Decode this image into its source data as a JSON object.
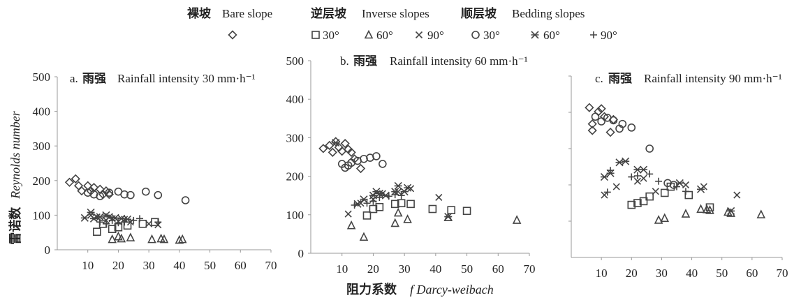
{
  "legend": {
    "groups": [
      {
        "cn": "裸坡",
        "en": "Bare slope"
      },
      {
        "cn": "逆层坡",
        "en": "Inverse slopes"
      },
      {
        "cn": "顺层坡",
        "en": "Bedding slopes"
      }
    ],
    "entries": [
      {
        "marker": "diamond",
        "label": ""
      },
      {
        "marker": "square",
        "label": "30°"
      },
      {
        "marker": "triangle",
        "label": "60°"
      },
      {
        "marker": "cross",
        "label": "90°"
      },
      {
        "marker": "circle",
        "label": "30°"
      },
      {
        "marker": "asterisk",
        "label": "60°"
      },
      {
        "marker": "plus",
        "label": "90°"
      }
    ]
  },
  "ylabel": {
    "cn": "雷诺数",
    "en": "Reynolds number"
  },
  "xlabel": {
    "cn": "阻力系数",
    "en": "f Darcy-weibach"
  },
  "chart_data": [
    {
      "type": "scatter",
      "panel": "a",
      "title_prefix": "a.",
      "title_cn": "雨强",
      "title_en": "Rainfall intensity 30 mm·h⁻¹",
      "xlim": [
        0,
        70
      ],
      "ylim": [
        0,
        500
      ],
      "xticks": [
        10,
        20,
        30,
        40,
        50,
        60,
        70
      ],
      "yticks": [
        0,
        100,
        200,
        300,
        400,
        500
      ],
      "series": [
        {
          "marker": "diamond",
          "points": [
            [
              4,
              195
            ],
            [
              6,
              205
            ],
            [
              7,
              185
            ],
            [
              8,
              170
            ],
            [
              10,
              185
            ],
            [
              11,
              170
            ],
            [
              12,
              180
            ],
            [
              14,
              175
            ],
            [
              15,
              160
            ],
            [
              16,
              170
            ],
            [
              17,
              160
            ]
          ]
        },
        {
          "marker": "circle",
          "points": [
            [
              10,
              165
            ],
            [
              12,
              160
            ],
            [
              14,
              155
            ],
            [
              17,
              165
            ],
            [
              20,
              168
            ],
            [
              22,
              160
            ],
            [
              24,
              158
            ],
            [
              29,
              168
            ],
            [
              33,
              158
            ],
            [
              42,
              143
            ]
          ]
        },
        {
          "marker": "square",
          "points": [
            [
              13,
              52
            ],
            [
              15,
              75
            ],
            [
              18,
              60
            ],
            [
              20,
              65
            ],
            [
              23,
              70
            ],
            [
              28,
              75
            ],
            [
              32,
              80
            ]
          ]
        },
        {
          "marker": "triangle",
          "points": [
            [
              18,
              30
            ],
            [
              20,
              38
            ],
            [
              21,
              32
            ],
            [
              24,
              35
            ],
            [
              31,
              30
            ],
            [
              34,
              32
            ],
            [
              35,
              30
            ],
            [
              40,
              28
            ],
            [
              41,
              30
            ]
          ]
        },
        {
          "marker": "cross",
          "points": [
            [
              11,
              100
            ],
            [
              13,
              95
            ],
            [
              16,
              85
            ],
            [
              18,
              90
            ],
            [
              20,
              82
            ],
            [
              22,
              88
            ],
            [
              24,
              80
            ],
            [
              30,
              75
            ],
            [
              33,
              72
            ]
          ]
        },
        {
          "marker": "asterisk",
          "points": [
            [
              9,
              92
            ],
            [
              11,
              108
            ],
            [
              12,
              90
            ],
            [
              14,
              95
            ],
            [
              16,
              100
            ],
            [
              17,
              95
            ],
            [
              19,
              92
            ],
            [
              21,
              90
            ],
            [
              23,
              88
            ]
          ]
        },
        {
          "marker": "plus",
          "points": [
            [
              14,
              80
            ],
            [
              16,
              75
            ],
            [
              18,
              85
            ],
            [
              20,
              78
            ],
            [
              22,
              80
            ],
            [
              25,
              85
            ],
            [
              27,
              90
            ],
            [
              33,
              80
            ]
          ]
        }
      ]
    },
    {
      "type": "scatter",
      "panel": "b",
      "title_prefix": "b.",
      "title_cn": "雨强",
      "title_en": "Rainfall intensity 60 mm·h⁻¹",
      "xlim": [
        0,
        70
      ],
      "ylim": [
        0,
        500
      ],
      "xticks": [
        10,
        20,
        30,
        40,
        50,
        60,
        70
      ],
      "yticks": [
        0,
        100,
        200,
        300,
        400,
        500
      ],
      "series": [
        {
          "marker": "diamond",
          "points": [
            [
              4,
              272
            ],
            [
              6,
              280
            ],
            [
              7,
              262
            ],
            [
              8,
              290
            ],
            [
              9,
              275
            ],
            [
              10,
              265
            ],
            [
              11,
              285
            ],
            [
              12,
              270
            ],
            [
              13,
              262
            ],
            [
              14,
              245
            ],
            [
              16,
              220
            ]
          ]
        },
        {
          "marker": "circle",
          "points": [
            [
              10,
              232
            ],
            [
              11,
              222
            ],
            [
              12,
              228
            ],
            [
              13,
              235
            ],
            [
              15,
              240
            ],
            [
              17,
              245
            ],
            [
              19,
              248
            ],
            [
              21,
              252
            ],
            [
              23,
              232
            ]
          ]
        },
        {
          "marker": "square",
          "points": [
            [
              18,
              98
            ],
            [
              20,
              115
            ],
            [
              22,
              120
            ],
            [
              27,
              128
            ],
            [
              29,
              130
            ],
            [
              32,
              128
            ],
            [
              39,
              115
            ],
            [
              45,
              112
            ],
            [
              50,
              110
            ]
          ]
        },
        {
          "marker": "triangle",
          "points": [
            [
              13,
              72
            ],
            [
              17,
              42
            ],
            [
              27,
              78
            ],
            [
              28,
              105
            ],
            [
              31,
              88
            ],
            [
              44,
              93
            ],
            [
              66,
              86
            ]
          ]
        },
        {
          "marker": "cross",
          "points": [
            [
              12,
              102
            ],
            [
              16,
              130
            ],
            [
              20,
              140
            ],
            [
              23,
              155
            ],
            [
              28,
              160
            ],
            [
              32,
              168
            ],
            [
              41,
              145
            ]
          ]
        },
        {
          "marker": "asterisk",
          "points": [
            [
              8,
              287
            ],
            [
              15,
              128
            ],
            [
              17,
              140
            ],
            [
              20,
              150
            ],
            [
              21,
              160
            ],
            [
              22,
              155
            ],
            [
              24,
              150
            ],
            [
              27,
              160
            ],
            [
              28,
              175
            ],
            [
              30,
              160
            ],
            [
              31,
              170
            ],
            [
              44,
              95
            ]
          ]
        },
        {
          "marker": "plus",
          "points": [
            [
              14,
              125
            ],
            [
              18,
              130
            ],
            [
              20,
              135
            ],
            [
              22,
              145
            ],
            [
              25,
              148
            ],
            [
              27,
              152
            ],
            [
              29,
              150
            ]
          ]
        }
      ]
    },
    {
      "type": "scatter",
      "panel": "c",
      "title_prefix": "c.",
      "title_cn": "雨强",
      "title_en": "Rainfall intensity 90 mm·h⁻¹",
      "xlim": [
        0,
        70
      ],
      "ylim": [
        0,
        500
      ],
      "xticks": [
        10,
        20,
        30,
        40,
        50,
        60,
        70
      ],
      "yticks": [],
      "series": [
        {
          "marker": "diamond",
          "points": [
            [
              6,
              413
            ],
            [
              7,
              368
            ],
            [
              7,
              350
            ],
            [
              9,
              402
            ],
            [
              10,
              410
            ],
            [
              11,
              388
            ],
            [
              13,
              345
            ],
            [
              14,
              380
            ]
          ]
        },
        {
          "marker": "circle",
          "points": [
            [
              8,
              388
            ],
            [
              10,
              375
            ],
            [
              12,
              385
            ],
            [
              14,
              378
            ],
            [
              16,
              355
            ],
            [
              17,
              368
            ],
            [
              20,
              358
            ],
            [
              26,
              300
            ],
            [
              32,
              205
            ],
            [
              34,
              200
            ]
          ]
        },
        {
          "marker": "square",
          "points": [
            [
              20,
              145
            ],
            [
              22,
              150
            ],
            [
              24,
              155
            ],
            [
              26,
              168
            ],
            [
              31,
              178
            ],
            [
              33,
              195
            ],
            [
              39,
              172
            ],
            [
              46,
              138
            ]
          ]
        },
        {
          "marker": "triangle",
          "points": [
            [
              29,
              103
            ],
            [
              31,
              108
            ],
            [
              38,
              120
            ],
            [
              43,
              133
            ],
            [
              45,
              132
            ],
            [
              46,
              130
            ],
            [
              52,
              125
            ],
            [
              53,
              122
            ],
            [
              63,
              118
            ]
          ]
        },
        {
          "marker": "cross",
          "points": [
            [
              11,
              172
            ],
            [
              15,
              195
            ],
            [
              22,
              210
            ],
            [
              24,
              218
            ],
            [
              28,
              182
            ],
            [
              38,
              200
            ],
            [
              44,
              195
            ],
            [
              55,
              172
            ]
          ]
        },
        {
          "marker": "asterisk",
          "points": [
            [
              11,
              222
            ],
            [
              13,
              232
            ],
            [
              16,
              262
            ],
            [
              18,
              265
            ],
            [
              22,
              242
            ],
            [
              24,
              242
            ],
            [
              36,
              205
            ],
            [
              43,
              188
            ],
            [
              53,
              128
            ]
          ]
        },
        {
          "marker": "plus",
          "points": [
            [
              12,
              180
            ],
            [
              13,
              240
            ],
            [
              20,
              222
            ],
            [
              22,
              225
            ],
            [
              26,
              230
            ],
            [
              29,
              210
            ],
            [
              35,
              195
            ],
            [
              38,
              182
            ]
          ]
        }
      ]
    }
  ]
}
